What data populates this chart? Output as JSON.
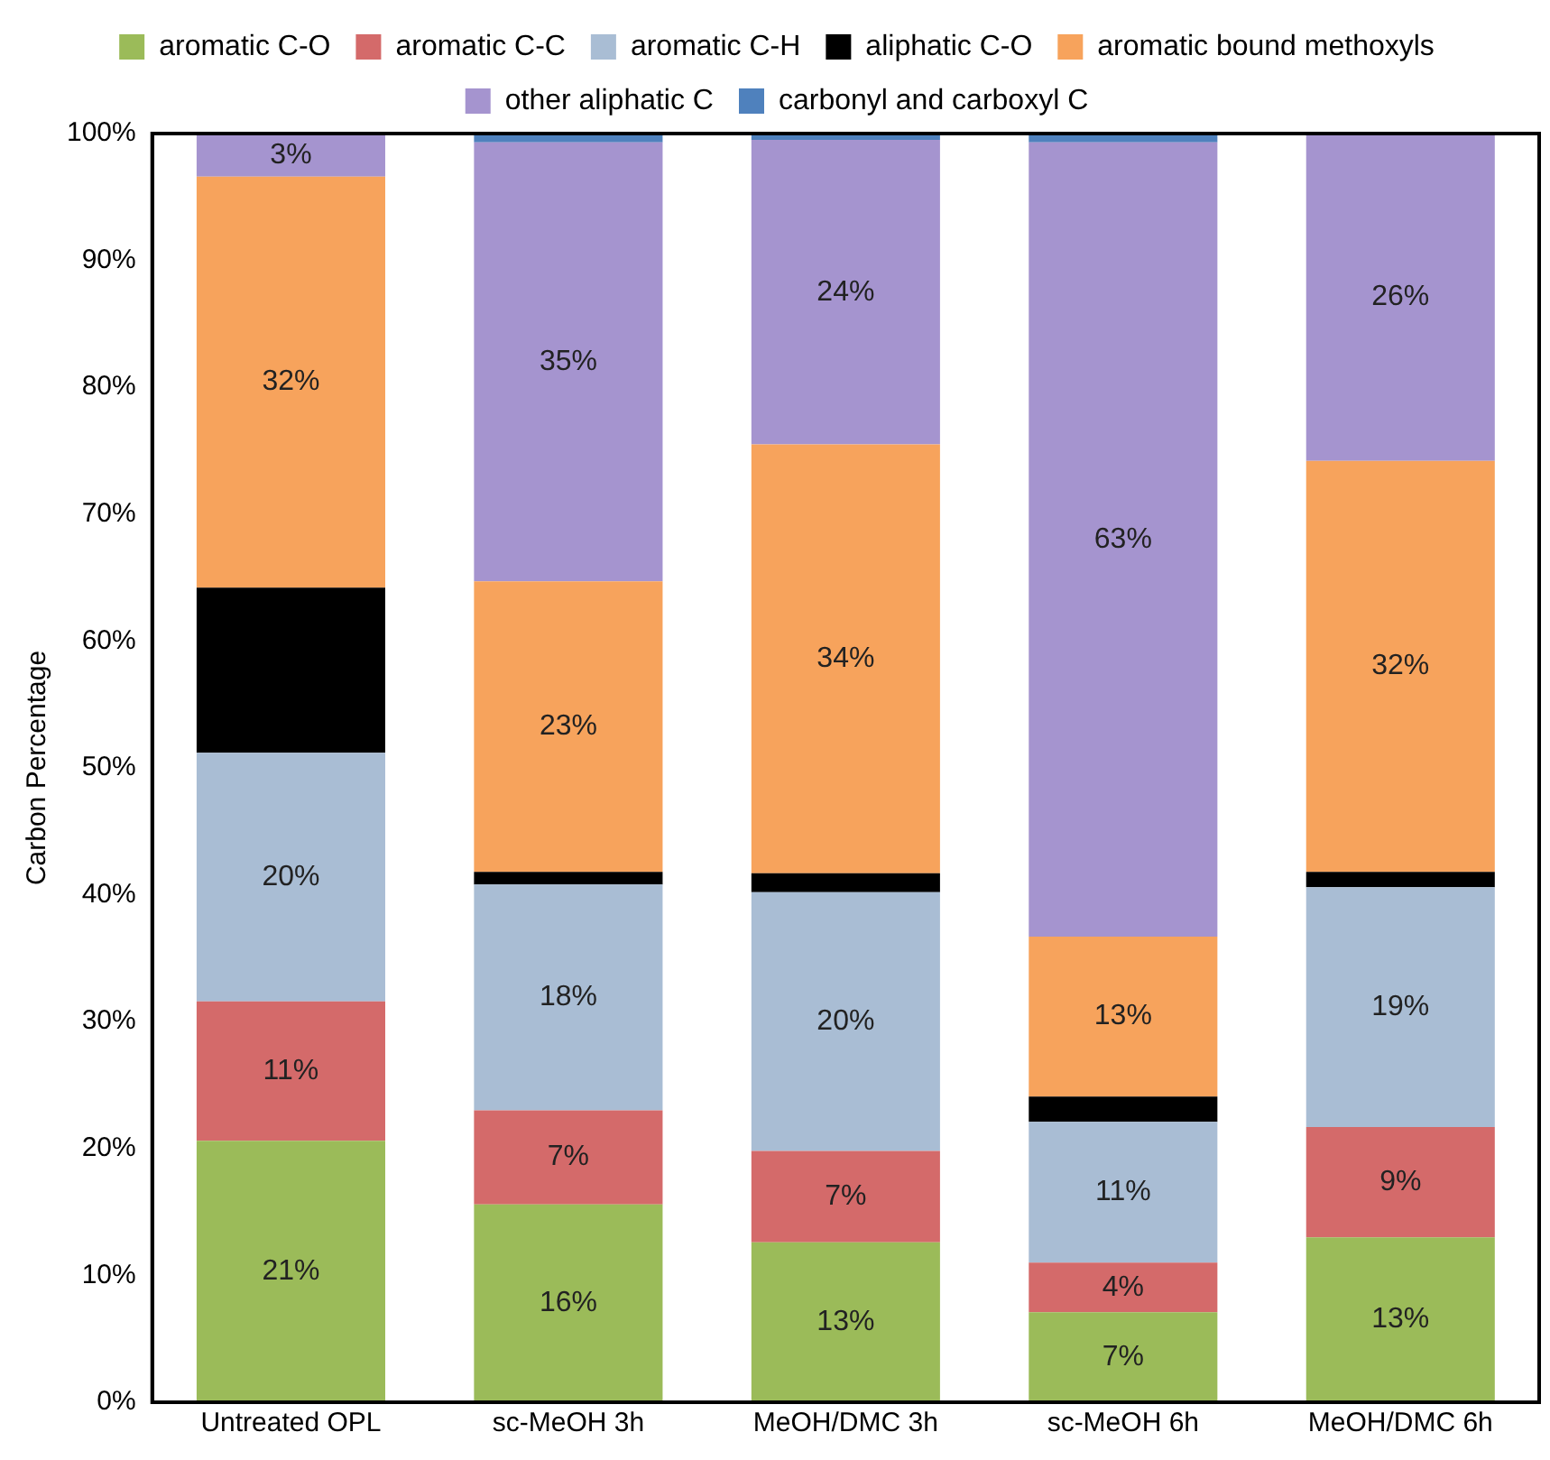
{
  "chart_data": {
    "type": "bar",
    "stacked": true,
    "ylabel": "Carbon Percentage",
    "categories": [
      "Untreated OPL",
      "sc-MeOH 3h",
      "MeOH/DMC 3h",
      "sc-MeOH 6h",
      "MeOH/DMC 6h"
    ],
    "ylim": [
      0,
      100
    ],
    "yticks": [
      {
        "value": 0,
        "label": "0%"
      },
      {
        "value": 10,
        "label": "10%"
      },
      {
        "value": 20,
        "label": "20%"
      },
      {
        "value": 30,
        "label": "30%"
      },
      {
        "value": 40,
        "label": "40%"
      },
      {
        "value": 50,
        "label": "50%"
      },
      {
        "value": 60,
        "label": "60%"
      },
      {
        "value": 70,
        "label": "70%"
      },
      {
        "value": 80,
        "label": "80%"
      },
      {
        "value": 90,
        "label": "90%"
      },
      {
        "value": 100,
        "label": "100%"
      }
    ],
    "grid": false,
    "legend": "top",
    "series": [
      {
        "name": "aromatic C-O",
        "color": "#9bbb59",
        "values": [
          20.6,
          15.6,
          12.6,
          7.1,
          13.0
        ],
        "value_labels": [
          "21%",
          "16%",
          "13%",
          "7%",
          "13%"
        ]
      },
      {
        "name": "aromatic C-C",
        "color": "#d46a6a",
        "values": [
          11.0,
          7.4,
          7.2,
          3.9,
          8.7
        ],
        "value_labels": [
          "11%",
          "7%",
          "7%",
          "4%",
          "9%"
        ]
      },
      {
        "name": "aromatic C-H",
        "color": "#a9bdd4",
        "values": [
          19.6,
          17.8,
          20.4,
          11.1,
          18.9
        ],
        "value_labels": [
          "20%",
          "18%",
          "20%",
          "11%",
          "19%"
        ]
      },
      {
        "name": "aliphatic C-O",
        "color": "#000000",
        "values": [
          13.0,
          1.0,
          1.5,
          2.0,
          1.2
        ],
        "value_labels": [
          null,
          null,
          null,
          null,
          null
        ]
      },
      {
        "name": "aromatic bound methoxyls",
        "color": "#f7a35c",
        "values": [
          32.4,
          22.9,
          33.8,
          12.6,
          32.4
        ],
        "value_labels": [
          "32%",
          "23%",
          "34%",
          "13%",
          "32%"
        ]
      },
      {
        "name": "other aliphatic C",
        "color": "#a594cf",
        "values": [
          3.4,
          34.6,
          24.0,
          62.6,
          25.8
        ],
        "value_labels": [
          "3%",
          "35%",
          "24%",
          "63%",
          "26%"
        ]
      },
      {
        "name": "carbonyl and carboxyl C",
        "color": "#4f81bd",
        "values": [
          0,
          0.7,
          0.5,
          0.7,
          0
        ],
        "value_labels": [
          null,
          null,
          null,
          null,
          null
        ]
      }
    ]
  }
}
